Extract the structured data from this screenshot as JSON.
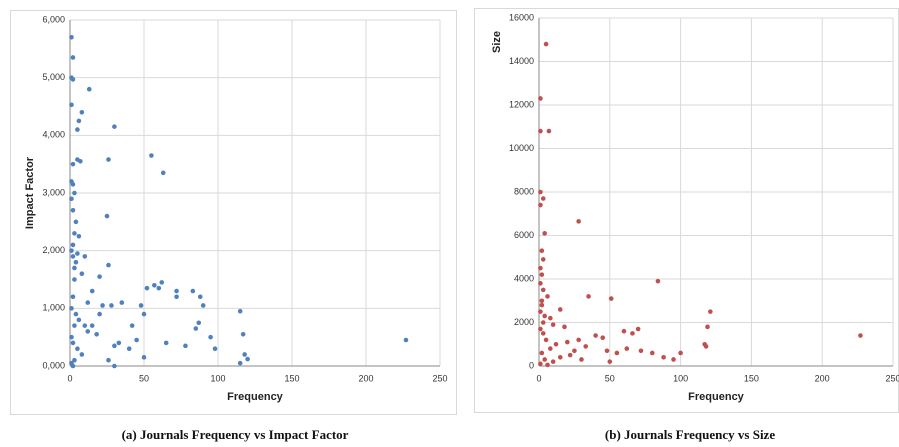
{
  "chart_data": [
    {
      "type": "scatter",
      "caption": "(a) Journals Frequency vs Impact Factor",
      "x_label": "Frequency",
      "y_label": "Impact Factor",
      "color": "#4f81bd",
      "grid": true,
      "xlim": [
        0,
        250
      ],
      "xticks": [
        0,
        50,
        100,
        150,
        200,
        250
      ],
      "ylim": [
        0,
        6000
      ],
      "yticks": [
        {
          "value": 0,
          "label": "0,000"
        },
        {
          "value": 1000,
          "label": "1,000"
        },
        {
          "value": 2000,
          "label": "2,000"
        },
        {
          "value": 3000,
          "label": "3,000"
        },
        {
          "value": 4000,
          "label": "4,000"
        },
        {
          "value": 5000,
          "label": "5,000"
        },
        {
          "value": 6000,
          "label": "6,000"
        }
      ],
      "x": [
        1,
        2,
        1,
        2,
        1,
        8,
        13,
        6,
        5,
        30,
        55,
        63,
        26,
        5,
        7,
        2,
        1,
        2,
        3,
        1,
        2,
        4,
        25,
        3,
        6,
        2,
        5,
        10,
        26,
        20,
        8,
        15,
        3,
        2,
        1,
        4,
        6,
        3,
        10,
        12,
        18,
        1,
        2,
        5,
        8,
        3,
        1,
        2,
        28,
        35,
        42,
        48,
        50,
        52,
        57,
        60,
        62,
        72,
        72,
        83,
        88,
        90,
        87,
        85,
        95,
        98,
        115,
        117,
        118,
        120,
        115,
        227,
        33,
        30,
        40,
        50,
        45,
        30,
        26,
        65,
        78,
        20,
        22,
        15,
        12,
        3,
        4,
        2,
        1
      ],
      "y": [
        5700,
        5350,
        5000,
        4970,
        4530,
        4400,
        4800,
        4250,
        4100,
        4150,
        3650,
        3350,
        3580,
        3580,
        3550,
        3500,
        3200,
        3150,
        3000,
        2900,
        2700,
        2500,
        2600,
        2300,
        2250,
        2100,
        1950,
        1900,
        1750,
        1550,
        1600,
        1300,
        1500,
        1200,
        1000,
        900,
        800,
        700,
        700,
        600,
        550,
        500,
        400,
        300,
        200,
        100,
        50,
        0,
        1050,
        1100,
        700,
        1050,
        900,
        1350,
        1400,
        1350,
        1450,
        1300,
        1200,
        1300,
        1200,
        1050,
        750,
        650,
        500,
        300,
        950,
        550,
        200,
        120,
        50,
        450,
        400,
        350,
        300,
        150,
        450,
        0,
        100,
        400,
        350,
        900,
        1050,
        700,
        1100,
        1700,
        1800,
        1900,
        2000
      ]
    },
    {
      "type": "scatter",
      "caption": "(b) Journals Frequency vs Size",
      "x_label": "Frequency",
      "y_label": "Size",
      "color": "#c0504d",
      "grid": true,
      "xlim": [
        0,
        250
      ],
      "xticks": [
        0,
        50,
        100,
        150,
        200,
        250
      ],
      "ylim": [
        0,
        16000
      ],
      "yticks": [
        0,
        2000,
        4000,
        6000,
        8000,
        10000,
        12000,
        14000,
        16000
      ],
      "x": [
        5,
        1,
        1,
        7,
        1,
        3,
        1,
        28,
        4,
        2,
        3,
        1,
        2,
        1,
        3,
        6,
        2,
        35,
        51,
        84,
        121,
        2,
        1,
        4,
        8,
        15,
        10,
        18,
        119,
        117,
        118,
        227,
        3,
        5,
        12,
        20,
        28,
        33,
        40,
        45,
        48,
        55,
        60,
        66,
        70,
        62,
        72,
        80,
        88,
        95,
        100,
        2,
        4,
        1,
        6,
        10,
        15,
        22,
        30,
        50,
        25,
        8,
        3,
        1
      ],
      "y": [
        14800,
        12300,
        10800,
        10800,
        8000,
        7700,
        7400,
        6650,
        6100,
        5300,
        4900,
        4500,
        4200,
        3800,
        3500,
        3200,
        3000,
        3200,
        3100,
        3900,
        2500,
        2800,
        2500,
        2300,
        2200,
        2600,
        1900,
        1800,
        1800,
        1000,
        900,
        1400,
        1500,
        1200,
        1000,
        1100,
        1200,
        900,
        1400,
        1300,
        700,
        600,
        1600,
        1500,
        1700,
        800,
        700,
        600,
        400,
        300,
        600,
        600,
        300,
        100,
        50,
        200,
        400,
        500,
        300,
        200,
        700,
        800,
        2000,
        1700
      ]
    }
  ]
}
